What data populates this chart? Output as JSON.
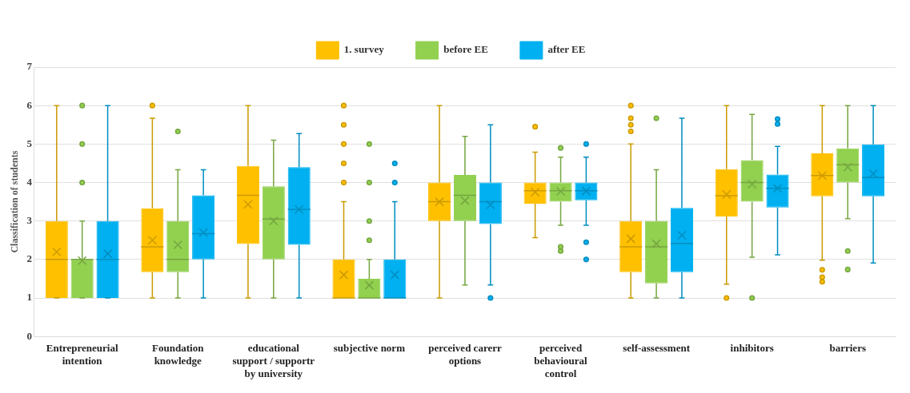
{
  "chart_data": {
    "type": "box",
    "ylabel": "Classification of students",
    "categories": [
      "Entrepreneurial intention",
      "Foundation knowledge",
      "educational support / supportr by university",
      "subjective norm",
      "perceived carerr options",
      "perceived behavioural control",
      "self-assessment",
      "inhibitors",
      "barriers"
    ],
    "ylim": [
      0,
      7
    ],
    "yticks": [
      0,
      1,
      2,
      3,
      4,
      5,
      6,
      7
    ],
    "grid": "y",
    "legend": "top",
    "series": [
      {
        "name": "1. survey",
        "color": "#ffc000",
        "boxes": [
          {
            "low": 1,
            "q1": 1,
            "median": 2,
            "q3": 3,
            "high": 6,
            "mean": 2.2
          },
          {
            "low": 1,
            "q1": 1.67,
            "median": 2.33,
            "q3": 3.33,
            "high": 5.67,
            "mean": 2.5,
            "outliers": [
              6
            ]
          },
          {
            "low": 1,
            "q1": 2.4,
            "median": 3.67,
            "q3": 4.43,
            "high": 6,
            "mean": 3.43
          },
          {
            "low": 1,
            "q1": 1,
            "median": 1,
            "q3": 2,
            "high": 3.5,
            "mean": 1.6,
            "outliers": [
              4,
              4.5,
              5,
              5.5,
              6
            ]
          },
          {
            "low": 1,
            "q1": 3,
            "median": 3.5,
            "q3": 4,
            "high": 6,
            "mean": 3.5
          },
          {
            "low": 2.57,
            "q1": 3.45,
            "median": 3.79,
            "q3": 4,
            "high": 4.79,
            "mean": 3.75,
            "outliers": [
              5.45
            ]
          },
          {
            "low": 1,
            "q1": 1.67,
            "median": 2.33,
            "q3": 3,
            "high": 5,
            "mean": 2.54,
            "outliers": [
              5.33,
              5.5,
              5.67,
              6
            ]
          },
          {
            "low": 1.36,
            "q1": 3.12,
            "median": 3.66,
            "q3": 4.35,
            "high": 6,
            "mean": 3.69,
            "outliers": [
              1
            ]
          },
          {
            "low": 1.98,
            "q1": 3.64,
            "median": 4.18,
            "q3": 4.76,
            "high": 6,
            "mean": 4.18,
            "outliers": [
              1.42,
              1.54,
              1.73
            ]
          }
        ]
      },
      {
        "name": "before EE",
        "color": "#92d050",
        "boxes": [
          {
            "low": 1,
            "q1": 1,
            "median": 2,
            "q3": 2,
            "high": 3,
            "mean": 1.97,
            "outliers": [
              4,
              5,
              6
            ]
          },
          {
            "low": 1,
            "q1": 1.67,
            "median": 2,
            "q3": 3,
            "high": 4.33,
            "mean": 2.38,
            "outliers": [
              5.33
            ]
          },
          {
            "low": 1,
            "q1": 2,
            "median": 3.05,
            "q3": 3.9,
            "high": 5.1,
            "mean": 3.0
          },
          {
            "low": 1,
            "q1": 1,
            "median": 1,
            "q3": 1.5,
            "high": 2,
            "mean": 1.33,
            "outliers": [
              2.5,
              3,
              4,
              5
            ]
          },
          {
            "low": 1.34,
            "q1": 3,
            "median": 3.67,
            "q3": 4.2,
            "high": 5.2,
            "mean": 3.53
          },
          {
            "low": 2.89,
            "q1": 3.5,
            "median": 3.79,
            "q3": 4,
            "high": 4.66,
            "mean": 3.77,
            "outliers": [
              2.22,
              2.33,
              4.9
            ]
          },
          {
            "low": 1,
            "q1": 1.38,
            "median": 2.33,
            "q3": 3,
            "high": 4.33,
            "mean": 2.41,
            "outliers": [
              5.67
            ]
          },
          {
            "low": 2.06,
            "q1": 3.5,
            "median": 4,
            "q3": 4.58,
            "high": 5.77,
            "mean": 3.96,
            "outliers": [
              1
            ]
          },
          {
            "low": 3.06,
            "q1": 4,
            "median": 4.46,
            "q3": 4.89,
            "high": 6,
            "mean": 4.4,
            "outliers": [
              1.74,
              2.22
            ]
          }
        ]
      },
      {
        "name": "after EE",
        "color": "#00b0f0",
        "boxes": [
          {
            "low": 1,
            "q1": 1,
            "median": 2,
            "q3": 3,
            "high": 6,
            "mean": 2.15
          },
          {
            "low": 1,
            "q1": 2,
            "median": 2.67,
            "q3": 3.67,
            "high": 4.33,
            "mean": 2.7
          },
          {
            "low": 1,
            "q1": 2.38,
            "median": 3.3,
            "q3": 4.4,
            "high": 5.27,
            "mean": 3.3
          },
          {
            "low": 1,
            "q1": 1,
            "median": 1,
            "q3": 2,
            "high": 3.5,
            "mean": 1.6,
            "outliers": [
              4,
              4.5
            ]
          },
          {
            "low": 1.34,
            "q1": 2.92,
            "median": 3.5,
            "q3": 4,
            "high": 5.5,
            "mean": 3.42,
            "outliers": [
              1
            ]
          },
          {
            "low": 2.89,
            "q1": 3.54,
            "median": 3.79,
            "q3": 4,
            "high": 4.66,
            "mean": 3.78,
            "outliers": [
              2,
              2.45,
              5
            ]
          },
          {
            "low": 1,
            "q1": 1.67,
            "median": 2.42,
            "q3": 3.34,
            "high": 5.67,
            "mean": 2.63
          },
          {
            "low": 2.12,
            "q1": 3.35,
            "median": 3.85,
            "q3": 4.21,
            "high": 4.94,
            "mean": 3.85,
            "outliers": [
              5.52,
              5.65
            ]
          },
          {
            "low": 1.91,
            "q1": 3.64,
            "median": 4.13,
            "q3": 4.99,
            "high": 6,
            "mean": 4.23
          }
        ]
      }
    ]
  }
}
